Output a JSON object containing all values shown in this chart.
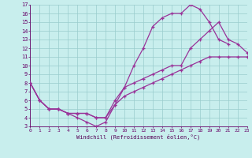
{
  "xlabel": "Windchill (Refroidissement éolien,°C)",
  "bg_color": "#c8eeed",
  "grid_color": "#99cccc",
  "line_color": "#993399",
  "xmin": 0,
  "xmax": 23,
  "ymin": 3,
  "ymax": 17,
  "yticks": [
    3,
    4,
    5,
    6,
    7,
    8,
    9,
    10,
    11,
    12,
    13,
    14,
    15,
    16,
    17
  ],
  "xticks": [
    0,
    1,
    2,
    3,
    4,
    5,
    6,
    7,
    8,
    9,
    10,
    11,
    12,
    13,
    14,
    15,
    16,
    17,
    18,
    19,
    20,
    21,
    22,
    23
  ],
  "line1_x": [
    0,
    1,
    2,
    3,
    4,
    5,
    6,
    7,
    8,
    9,
    10,
    11,
    12,
    13,
    14,
    15,
    16,
    17,
    18,
    19,
    20,
    21
  ],
  "line1_y": [
    8,
    6,
    5,
    5,
    4.5,
    4,
    3.5,
    3,
    3.5,
    5.5,
    7.5,
    10,
    12,
    14.5,
    15.5,
    16,
    16,
    17,
    16.5,
    15,
    13,
    12.5
  ],
  "line2_x": [
    0,
    1,
    2,
    3,
    4,
    5,
    6,
    7,
    8,
    9,
    10,
    11,
    12,
    13,
    14,
    15,
    16,
    17,
    18,
    19,
    20,
    21,
    22,
    23
  ],
  "line2_y": [
    8,
    6,
    5,
    5,
    4.5,
    4.5,
    4.5,
    4,
    4,
    6,
    7.5,
    8,
    8.5,
    9,
    9.5,
    10,
    10,
    12,
    13,
    14,
    15,
    13,
    12.5,
    11.5
  ],
  "line3_x": [
    0,
    1,
    2,
    3,
    4,
    5,
    6,
    7,
    8,
    9,
    10,
    11,
    12,
    13,
    14,
    15,
    16,
    17,
    18,
    19,
    20,
    21,
    22,
    23
  ],
  "line3_y": [
    8,
    6,
    5,
    5,
    4.5,
    4.5,
    4.5,
    4,
    4,
    5.5,
    6.5,
    7,
    7.5,
    8,
    8.5,
    9,
    9.5,
    10,
    10.5,
    11,
    11,
    11,
    11,
    11
  ]
}
